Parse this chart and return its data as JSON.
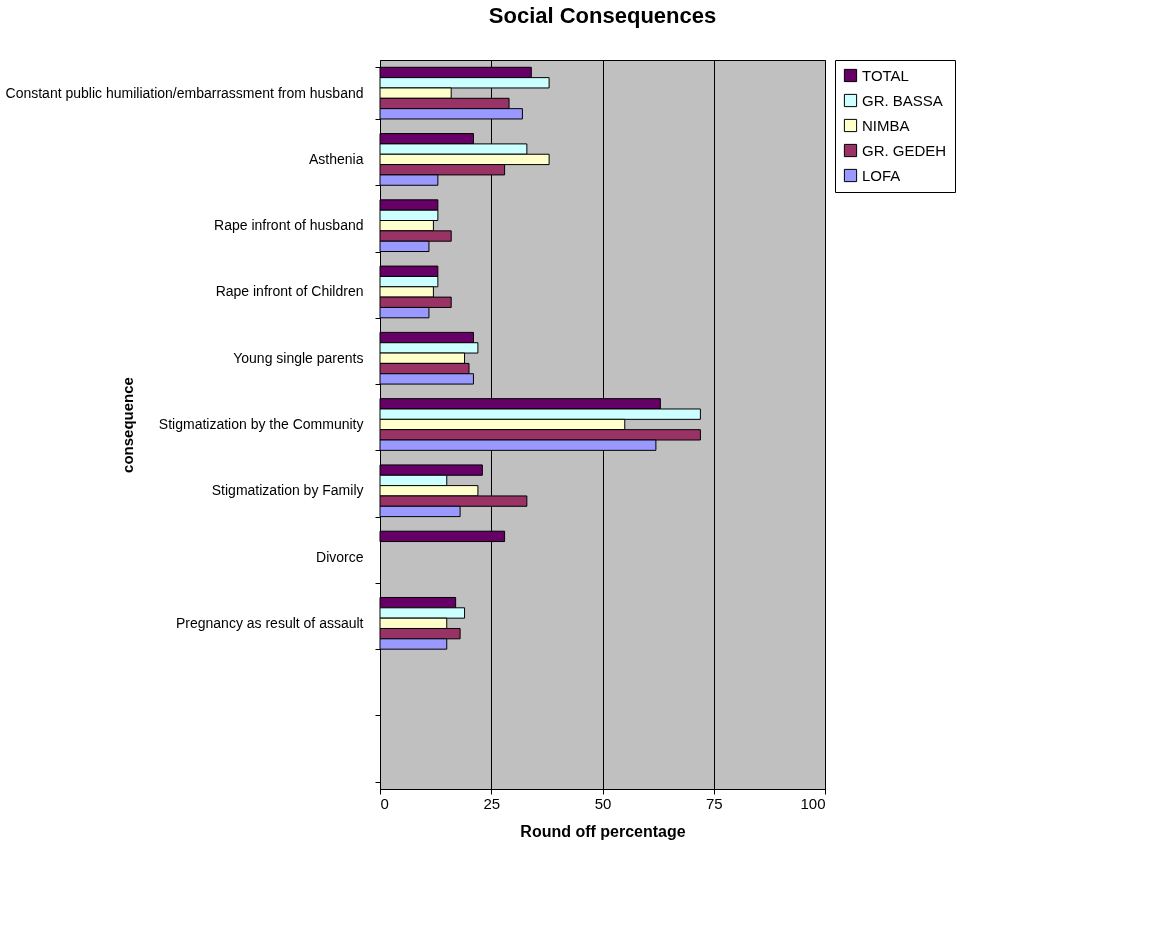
{
  "chart_data": {
    "type": "bar",
    "orientation": "horizontal",
    "title": "Social Consequences",
    "xlabel": "Round off percentage",
    "ylabel": "consequence",
    "categories": [
      "Constant public humiliation/embarrassment from husband",
      "Asthenia",
      "Rape infront of husband",
      "Rape infront of Children",
      "Young single parents",
      "Stigmatization by the Community",
      "Stigmatization by Family",
      "Divorce",
      "Pregnancy as result of assault",
      null,
      null
    ],
    "series": [
      {
        "name": "TOTAL",
        "color": "#660066",
        "values": [
          34,
          21,
          13,
          13,
          21,
          63,
          23,
          28,
          17,
          null,
          null
        ]
      },
      {
        "name": "GR. BASSA",
        "color": "#ccffff",
        "values": [
          38,
          33,
          13,
          13,
          22,
          72,
          15,
          null,
          19,
          null,
          null
        ]
      },
      {
        "name": "NIMBA",
        "color": "#ffffcc",
        "values": [
          16,
          38,
          12,
          12,
          19,
          55,
          22,
          null,
          15,
          null,
          null
        ]
      },
      {
        "name": "GR. GEDEH",
        "color": "#993366",
        "values": [
          29,
          28,
          16,
          16,
          20,
          72,
          33,
          null,
          18,
          null,
          null
        ]
      },
      {
        "name": "LOFA",
        "color": "#9999ff",
        "values": [
          32,
          13,
          11,
          11,
          21,
          62,
          18,
          null,
          15,
          null,
          null
        ]
      }
    ],
    "xlim": [
      0,
      100
    ],
    "xticks": [
      0,
      25,
      50,
      75,
      100
    ],
    "grid": "x",
    "legend": "right"
  }
}
